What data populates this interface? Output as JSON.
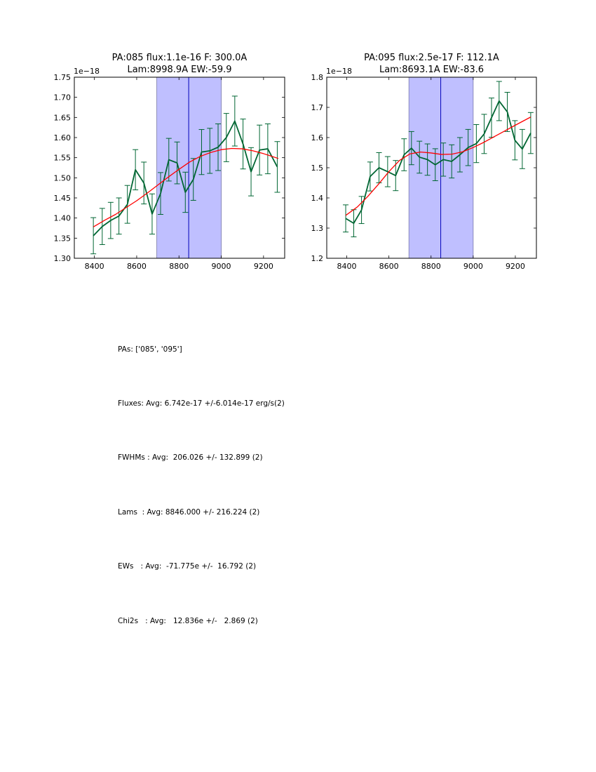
{
  "chart_data": [
    {
      "type": "line",
      "title_line1": "PA:085 flux:1.1e-16 F: 300.0A",
      "title_line2": "Lam:8998.9A EW:-59.9",
      "offset_label": "1e−18",
      "xlim": [
        8305,
        9300
      ],
      "ylim": [
        1.3,
        1.75
      ],
      "xticks": [
        8400,
        8600,
        8800,
        9000,
        9200
      ],
      "yticks": [
        1.3,
        1.35,
        1.4,
        1.45,
        1.5,
        1.55,
        1.6,
        1.65,
        1.7,
        1.75
      ],
      "ytick_labels": [
        "1.30",
        "1.35",
        "1.40",
        "1.45",
        "1.50",
        "1.55",
        "1.60",
        "1.65",
        "1.70",
        "1.75"
      ],
      "xtick_labels": [
        "8400",
        "8600",
        "8800",
        "9000",
        "9200"
      ],
      "shaded_band": [
        8695,
        9000
      ],
      "center_line": 8846,
      "colors": {
        "data": "#006633",
        "fit": "#ff0000",
        "band": "#bfbfff",
        "band_edge": "#7777aa",
        "center": "#0000bb"
      },
      "data": {
        "x": [
          8395,
          8437,
          8477,
          8516,
          8556,
          8594,
          8634,
          8673,
          8713,
          8752,
          8791,
          8830,
          8868,
          8907,
          8946,
          8985,
          9024,
          9064,
          9103,
          9141,
          9181,
          9220,
          9265
        ],
        "y": [
          1.356,
          1.379,
          1.394,
          1.405,
          1.434,
          1.52,
          1.487,
          1.41,
          1.461,
          1.545,
          1.537,
          1.464,
          1.496,
          1.564,
          1.567,
          1.576,
          1.6,
          1.641,
          1.584,
          1.515,
          1.569,
          1.572,
          1.527
        ],
        "err": [
          0.045,
          0.045,
          0.045,
          0.045,
          0.047,
          0.05,
          0.052,
          0.05,
          0.052,
          0.053,
          0.052,
          0.05,
          0.052,
          0.056,
          0.056,
          0.058,
          0.06,
          0.062,
          0.062,
          0.06,
          0.062,
          0.062,
          0.063
        ]
      },
      "fit": {
        "x": [
          8395,
          8450,
          8500,
          8550,
          8600,
          8650,
          8700,
          8750,
          8800,
          8850,
          8900,
          8950,
          9000,
          9050,
          9100,
          9150,
          9200,
          9270
        ],
        "y": [
          1.378,
          1.395,
          1.409,
          1.426,
          1.443,
          1.462,
          1.482,
          1.502,
          1.521,
          1.539,
          1.553,
          1.563,
          1.57,
          1.573,
          1.572,
          1.567,
          1.56,
          1.548
        ]
      }
    },
    {
      "type": "line",
      "title_line1": "PA:095 flux:2.5e-17 F: 112.1A",
      "title_line2": "Lam:8693.1A EW:-83.6",
      "offset_label": "1e−18",
      "xlim": [
        8305,
        9300
      ],
      "ylim": [
        1.2,
        1.8
      ],
      "xticks": [
        8400,
        8600,
        8800,
        9000,
        9200
      ],
      "yticks": [
        1.2,
        1.3,
        1.4,
        1.5,
        1.6,
        1.7,
        1.8
      ],
      "ytick_labels": [
        "1.2",
        "1.3",
        "1.4",
        "1.5",
        "1.6",
        "1.7",
        "1.8"
      ],
      "xtick_labels": [
        "8400",
        "8600",
        "8800",
        "9000",
        "9200"
      ],
      "shaded_band": [
        8695,
        9000
      ],
      "center_line": 8846,
      "colors": {
        "data": "#006633",
        "fit": "#ff0000",
        "band": "#bfbfff",
        "band_edge": "#7777aa",
        "center": "#0000bb"
      },
      "data": {
        "x": [
          8395,
          8433,
          8470,
          8511,
          8553,
          8594,
          8632,
          8672,
          8707,
          8745,
          8783,
          8820,
          8858,
          8898,
          8937,
          8976,
          9015,
          9052,
          9087,
          9123,
          9162,
          9198,
          9233,
          9273
        ],
        "y": [
          1.332,
          1.316,
          1.36,
          1.471,
          1.5,
          1.487,
          1.474,
          1.543,
          1.565,
          1.535,
          1.527,
          1.51,
          1.527,
          1.521,
          1.543,
          1.567,
          1.58,
          1.612,
          1.666,
          1.721,
          1.685,
          1.591,
          1.562,
          1.615
        ]
      },
      "data_err": [
        0.045,
        0.045,
        0.045,
        0.048,
        0.05,
        0.05,
        0.05,
        0.053,
        0.055,
        0.053,
        0.052,
        0.053,
        0.055,
        0.055,
        0.057,
        0.06,
        0.063,
        0.065,
        0.065,
        0.065,
        0.065,
        0.065,
        0.065,
        0.068
      ],
      "fit": {
        "x": [
          8395,
          8450,
          8500,
          8550,
          8600,
          8650,
          8700,
          8750,
          8800,
          8850,
          8900,
          8950,
          9000,
          9050,
          9100,
          9150,
          9200,
          9273
        ],
        "y": [
          1.342,
          1.37,
          1.405,
          1.445,
          1.487,
          1.524,
          1.546,
          1.552,
          1.549,
          1.544,
          1.545,
          1.553,
          1.567,
          1.584,
          1.603,
          1.622,
          1.641,
          1.668
        ]
      }
    }
  ],
  "summary": {
    "pas": "PAs: ['085', '095']",
    "fluxes": "Fluxes: Avg: 6.742e-17 +/-6.014e-17 erg/s(2)",
    "fwhms": "FWHMs : Avg:  206.026 +/- 132.899 (2)",
    "lams": "Lams  : Avg: 8846.000 +/- 216.224 (2)",
    "ews": "EWs   : Avg:  -71.775e +/-  16.792 (2)",
    "chi2s": "Chi2s   : Avg:   12.836e +/-   2.869 (2)"
  }
}
